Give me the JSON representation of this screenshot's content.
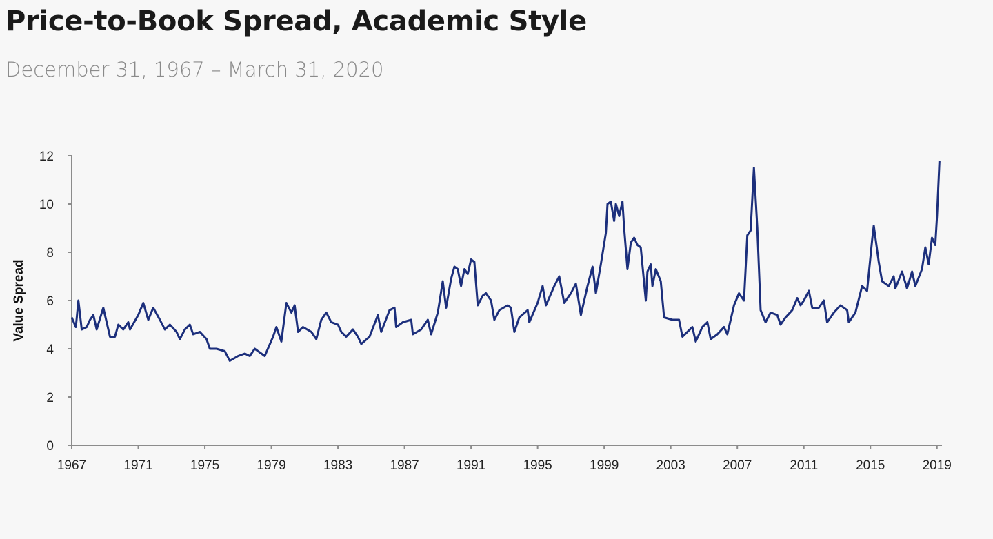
{
  "header": {
    "title": "Price-to-Book Spread, Academic Style",
    "subtitle": "December 31, 1967 – March 31, 2020"
  },
  "chart_data": {
    "type": "line",
    "title": "Price-to-Book Spread, Academic Style",
    "subtitle": "December 31, 1967 – March 31, 2020",
    "xlabel": "",
    "ylabel": "Value Spread",
    "xlim": [
      1967,
      2019.3
    ],
    "ylim": [
      0,
      12
    ],
    "x_ticks": [
      "1967",
      "1971",
      "1975",
      "1979",
      "1983",
      "1987",
      "1991",
      "1995",
      "1999",
      "2003",
      "2007",
      "2011",
      "2015",
      "2019"
    ],
    "y_ticks": [
      "0",
      "2",
      "4",
      "6",
      "8",
      "10",
      "12"
    ],
    "grid": false,
    "legend": "none",
    "line_color": "#1c2f7c",
    "series": [
      {
        "x": [
          1967.0,
          1967.25,
          1967.4,
          1967.6,
          1967.9,
          1968.1,
          1968.3,
          1968.5,
          1968.9,
          1969.3,
          1969.6,
          1969.8,
          1970.1,
          1970.4,
          1970.5,
          1971.0,
          1971.3,
          1971.6,
          1971.9,
          1972.3,
          1972.6,
          1972.9,
          1973.3,
          1973.5,
          1973.8,
          1974.1,
          1974.3,
          1974.7,
          1975.1,
          1975.3,
          1975.7,
          1976.2,
          1976.5,
          1977.0,
          1977.4,
          1977.7,
          1978.0,
          1978.4,
          1978.6,
          1979.1,
          1979.3,
          1979.6,
          1979.9,
          1980.2,
          1980.4,
          1980.6,
          1980.9,
          1981.4,
          1981.7,
          1982.0,
          1982.3,
          1982.6,
          1983.0,
          1983.2,
          1983.5,
          1983.9,
          1984.2,
          1984.4,
          1984.9,
          1985.4,
          1985.6,
          1986.1,
          1986.4,
          1986.5,
          1986.9,
          1987.4,
          1987.5,
          1988.0,
          1988.4,
          1988.6,
          1989.0,
          1989.3,
          1989.5,
          1989.8,
          1990.0,
          1990.2,
          1990.4,
          1990.6,
          1990.8,
          1991.0,
          1991.2,
          1991.4,
          1991.7,
          1991.9,
          1992.2,
          1992.4,
          1992.7,
          1993.2,
          1993.4,
          1993.6,
          1993.9,
          1994.4,
          1994.5,
          1995.0,
          1995.3,
          1995.5,
          1996.0,
          1996.3,
          1996.6,
          1997.0,
          1997.3,
          1997.6,
          1998.0,
          1998.3,
          1998.5,
          1998.8,
          1999.1,
          1999.2,
          1999.4,
          1999.6,
          1999.7,
          1999.9,
          2000.1,
          2000.2,
          2000.4,
          2000.6,
          2000.8,
          2001.0,
          2001.2,
          2001.5,
          2001.6,
          2001.8,
          2001.9,
          2002.1,
          2002.4,
          2002.6,
          2003.1,
          2003.5,
          2003.7,
          2004.0,
          2004.3,
          2004.5,
          2004.9,
          2005.2,
          2005.4,
          2005.8,
          2006.2,
          2006.4,
          2006.8,
          2007.1,
          2007.4,
          2007.6,
          2007.8,
          2008.0,
          2008.2,
          2008.4,
          2008.7,
          2009.0,
          2009.4,
          2009.6,
          2009.9,
          2010.3,
          2010.6,
          2010.8,
          2011.0,
          2011.3,
          2011.5,
          2011.9,
          2012.2,
          2012.4,
          2012.8,
          2013.2,
          2013.6,
          2013.7,
          2014.1,
          2014.5,
          2014.8,
          2015.1,
          2015.2,
          2015.5,
          2015.7,
          2016.1,
          2016.4,
          2016.5,
          2016.9,
          2017.2,
          2017.5,
          2017.7,
          2018.1,
          2018.3,
          2018.5,
          2018.7,
          2018.9,
          2019.0,
          2019.15
        ],
        "values": [
          5.3,
          4.9,
          6.0,
          4.8,
          4.9,
          5.2,
          5.4,
          4.8,
          5.7,
          4.5,
          4.5,
          5.0,
          4.8,
          5.1,
          4.8,
          5.4,
          5.9,
          5.2,
          5.7,
          5.2,
          4.8,
          5.0,
          4.7,
          4.4,
          4.8,
          5.0,
          4.6,
          4.7,
          4.4,
          4.0,
          4.0,
          3.9,
          3.5,
          3.7,
          3.8,
          3.7,
          4.0,
          3.8,
          3.7,
          4.5,
          4.9,
          4.3,
          5.9,
          5.5,
          5.8,
          4.7,
          4.9,
          4.7,
          4.4,
          5.2,
          5.5,
          5.1,
          5.0,
          4.7,
          4.5,
          4.8,
          4.5,
          4.2,
          4.5,
          5.4,
          4.7,
          5.6,
          5.7,
          4.9,
          5.1,
          5.2,
          4.6,
          4.8,
          5.2,
          4.6,
          5.5,
          6.8,
          5.7,
          6.9,
          7.4,
          7.3,
          6.6,
          7.3,
          7.1,
          7.7,
          7.6,
          5.8,
          6.2,
          6.3,
          6.0,
          5.2,
          5.6,
          5.8,
          5.7,
          4.7,
          5.3,
          5.6,
          5.1,
          5.9,
          6.6,
          5.8,
          6.6,
          7.0,
          5.9,
          6.3,
          6.7,
          5.4,
          6.6,
          7.4,
          6.3,
          7.5,
          8.8,
          10.0,
          10.1,
          9.3,
          10.0,
          9.5,
          10.1,
          9.0,
          7.3,
          8.4,
          8.6,
          8.3,
          8.2,
          6.0,
          7.2,
          7.5,
          6.6,
          7.3,
          6.8,
          5.3,
          5.2,
          5.2,
          4.5,
          4.7,
          4.9,
          4.3,
          4.9,
          5.1,
          4.4,
          4.6,
          4.9,
          4.6,
          5.8,
          6.3,
          6.0,
          8.7,
          8.9,
          11.5,
          9.0,
          5.6,
          5.1,
          5.5,
          5.4,
          5.0,
          5.3,
          5.6,
          6.1,
          5.8,
          6.0,
          6.4,
          5.7,
          5.7,
          6.0,
          5.1,
          5.5,
          5.8,
          5.6,
          5.1,
          5.5,
          6.6,
          6.4,
          8.5,
          9.1,
          7.6,
          6.8,
          6.6,
          7.0,
          6.5,
          7.2,
          6.5,
          7.2,
          6.6,
          7.3,
          8.2,
          7.5,
          8.6,
          8.3,
          9.5,
          11.8
        ]
      }
    ]
  }
}
